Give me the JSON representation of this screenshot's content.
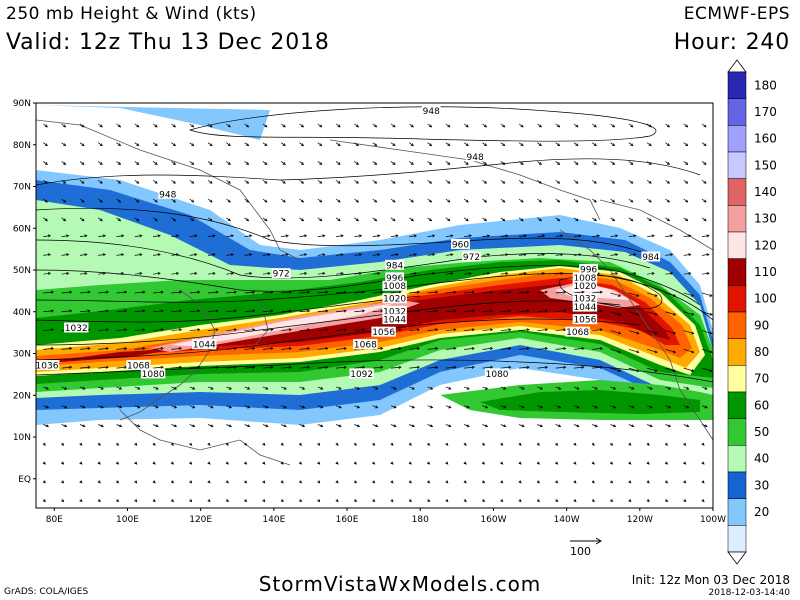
{
  "header": {
    "title": "250 mb Height & Wind (kts)",
    "valid": "Valid: 12z Thu 13 Dec 2018",
    "model": "ECMWF-EPS",
    "hour": "Hour: 240"
  },
  "footer": {
    "site": "StormVistaWxModels.com",
    "grads": "GrADS: COLA/IGES",
    "init": "Init: 12z Mon 03 Dec 2018",
    "stamp": "2018-12-03-14:40",
    "vector_ref": "100"
  },
  "map": {
    "lat_labels": [
      "90N",
      "80N",
      "70N",
      "60N",
      "50N",
      "40N",
      "30N",
      "20N",
      "10N",
      "EQ"
    ],
    "lon_labels": [
      "80E",
      "100E",
      "120E",
      "140E",
      "160E",
      "180",
      "160W",
      "140W",
      "120W",
      "100W"
    ],
    "height_labels": [
      {
        "text": "948",
        "lon": 183,
        "lat": 88
      },
      {
        "text": "948",
        "lon": 195,
        "lat": 77
      },
      {
        "text": "948",
        "lon": 111,
        "lat": 68
      },
      {
        "text": "960",
        "lon": 191,
        "lat": 56
      },
      {
        "text": "972",
        "lon": 194,
        "lat": 53
      },
      {
        "text": "972",
        "lon": 142,
        "lat": 49
      },
      {
        "text": "984",
        "lon": 173,
        "lat": 51
      },
      {
        "text": "996",
        "lon": 173,
        "lat": 48
      },
      {
        "text": "1008",
        "lon": 173,
        "lat": 46
      },
      {
        "text": "1020",
        "lon": 173,
        "lat": 43
      },
      {
        "text": "1032",
        "lon": 173,
        "lat": 40
      },
      {
        "text": "1044",
        "lon": 173,
        "lat": 38
      },
      {
        "text": "1056",
        "lon": 170,
        "lat": 35
      },
      {
        "text": "1068",
        "lon": 165,
        "lat": 32
      },
      {
        "text": "1032",
        "lon": 86,
        "lat": 36
      },
      {
        "text": "1044",
        "lon": 121,
        "lat": 32
      },
      {
        "text": "1068",
        "lon": 103,
        "lat": 27
      },
      {
        "text": "1080",
        "lon": 107,
        "lat": 25
      },
      {
        "text": "1036",
        "lon": 78,
        "lat": 27
      },
      {
        "text": "1092",
        "lon": 164,
        "lat": 25
      },
      {
        "text": "1080",
        "lon": 201,
        "lat": 25
      },
      {
        "text": "984",
        "lon": 243,
        "lat": 53
      },
      {
        "text": "996",
        "lon": 226,
        "lat": 50
      },
      {
        "text": "1008",
        "lon": 225,
        "lat": 48
      },
      {
        "text": "1020",
        "lon": 225,
        "lat": 46
      },
      {
        "text": "1032",
        "lon": 225,
        "lat": 43
      },
      {
        "text": "1044",
        "lon": 225,
        "lat": 41
      },
      {
        "text": "1056",
        "lon": 225,
        "lat": 38
      },
      {
        "text": "1068",
        "lon": 223,
        "lat": 35
      }
    ]
  },
  "colorbar": {
    "levels": [
      "180",
      "170",
      "160",
      "150",
      "140",
      "130",
      "120",
      "110",
      "100",
      "90",
      "80",
      "70",
      "60",
      "50",
      "40",
      "30",
      "20"
    ],
    "colors": [
      "#2828b4",
      "#6464e6",
      "#a0a0ff",
      "#c8c8ff",
      "#e16464",
      "#f4a0a0",
      "#ffe6e6",
      "#a00000",
      "#e11400",
      "#ff6400",
      "#ffaa00",
      "#ffffa0",
      "#009600",
      "#32c832",
      "#b4fab4",
      "#1464d2",
      "#82c8ff",
      "#dceeff"
    ]
  },
  "palette": {
    "land": "#555555",
    "frame": "#000000"
  }
}
